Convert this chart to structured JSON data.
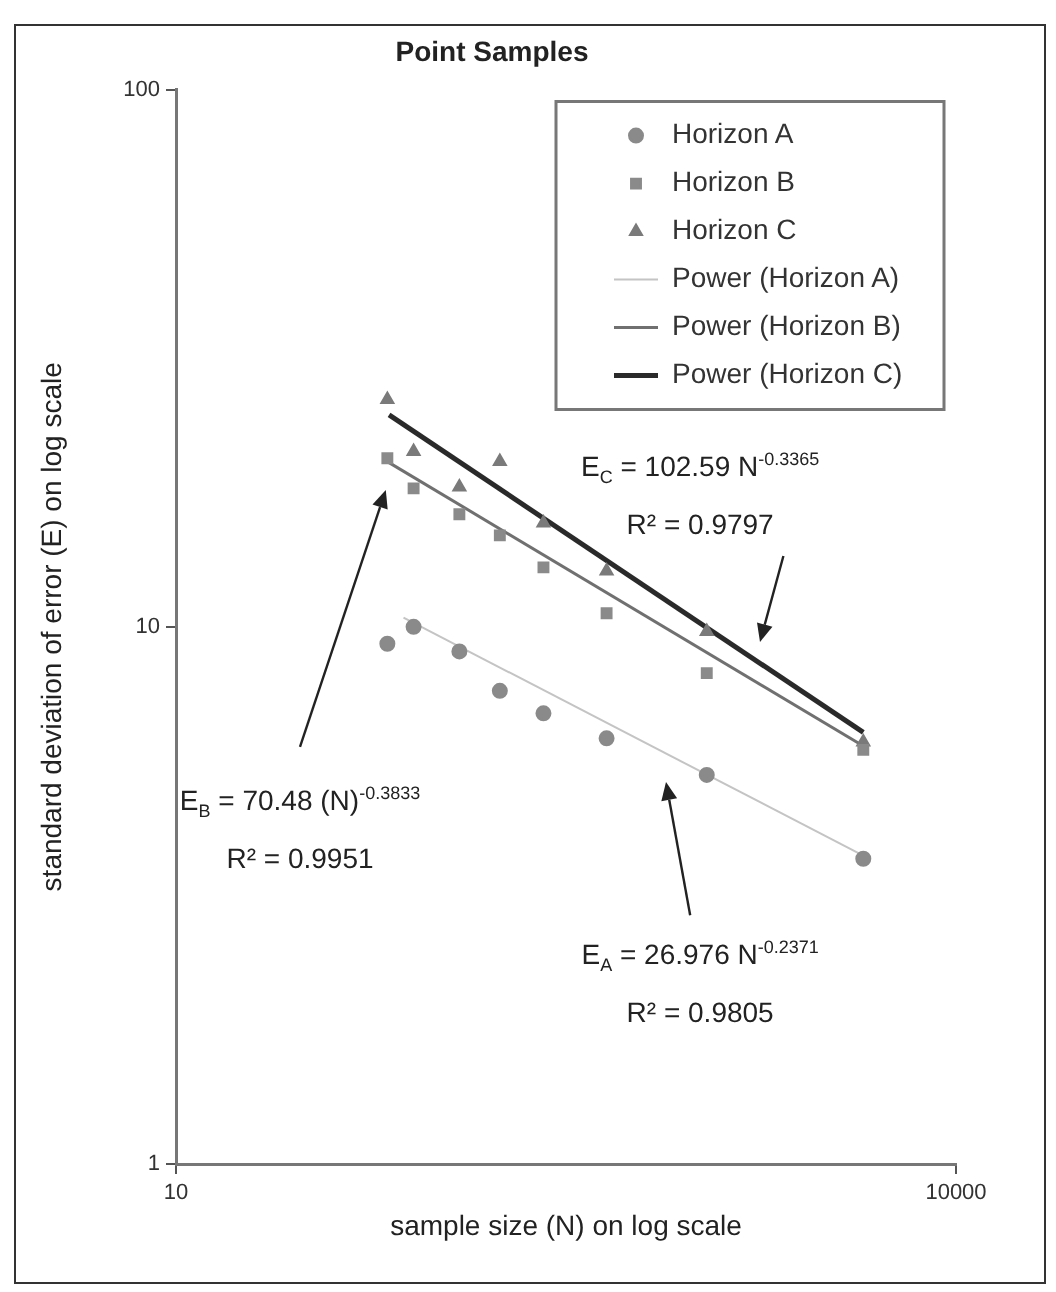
{
  "chart_data": {
    "type": "scatter",
    "title": "Point Samples",
    "xlabel": "sample size (N) on log scale",
    "ylabel": "standard deviation of error (E) on log scale",
    "log": "xy",
    "xlim": [
      10,
      10000
    ],
    "ylim": [
      1,
      100
    ],
    "xticks": [
      10,
      10000
    ],
    "yticks": [
      1,
      10,
      100
    ],
    "grid": false,
    "legend": "top right",
    "x": [
      65,
      82,
      123,
      176,
      259,
      453,
      1100,
      4400
    ],
    "series": [
      {
        "name": "Horizon A",
        "type": "scatter",
        "marker": "circle",
        "color": "#8a8a8a",
        "values": [
          9.3,
          10.0,
          9.0,
          7.6,
          6.9,
          6.2,
          5.3,
          3.7
        ]
      },
      {
        "name": "Horizon B",
        "type": "scatter",
        "marker": "square",
        "color": "#8a8a8a",
        "values": [
          20.6,
          18.1,
          16.2,
          14.8,
          12.9,
          10.6,
          8.2,
          5.9
        ]
      },
      {
        "name": "Horizon C",
        "type": "scatter",
        "marker": "triangle",
        "color": "#7a7a7a",
        "values": [
          26.5,
          21.2,
          18.2,
          20.3,
          15.6,
          12.7,
          9.8,
          6.1
        ]
      },
      {
        "name": "Power (Horizon A)",
        "type": "line",
        "marker": "none",
        "color": "#c4c4c4",
        "x": [
          75,
          4400
        ],
        "values": [
          10.4,
          3.75
        ]
      },
      {
        "name": "Power (Horizon B)",
        "type": "line",
        "marker": "none",
        "color": "#707070",
        "x": [
          65,
          4400
        ],
        "values": [
          20.3,
          6.0
        ]
      },
      {
        "name": "Power (Horizon C)",
        "type": "line",
        "marker": "none",
        "color": "#2a2a2a",
        "x": [
          66,
          4400
        ],
        "values": [
          24.8,
          6.36
        ]
      }
    ],
    "annotations": [
      "E$_{C}$ = 102.59 N$^{-0.3365}$",
      "R² = 0.9797",
      "E$_{B}$ = 70.48 (N)$^{-0.3833}$",
      "R² = 0.9951",
      "E$_{A}$ = 26.976 N$^{-0.2371}$",
      "R² = 0.9805"
    ]
  }
}
